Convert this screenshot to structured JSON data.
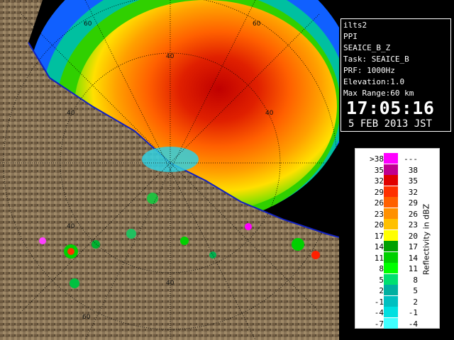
{
  "radar_display": {
    "range_ring_labels": [
      "60",
      "60",
      "40",
      "40",
      "40",
      "40",
      "40",
      "60"
    ]
  },
  "info": {
    "station": "ilts2",
    "scan_type": "PPI",
    "product": "SEAICE_B_Z",
    "task": "Task: SEAICE_B",
    "prf": "PRF: 1000Hz",
    "elevation": "Elevation:1.0",
    "max_range": "Max Range:60 km",
    "time": "17:05:16",
    "date": "5 FEB 2013 JST"
  },
  "legend": {
    "title": "Reflectivity in dBZ",
    "rows": [
      {
        "lo": ">38",
        "hi": "---",
        "color": "#ff00ff"
      },
      {
        "lo": "35",
        "hi": "38",
        "color": "#c00090"
      },
      {
        "lo": "32",
        "hi": "35",
        "color": "#e00000"
      },
      {
        "lo": "29",
        "hi": "32",
        "color": "#ff3000"
      },
      {
        "lo": "26",
        "hi": "29",
        "color": "#ff6000"
      },
      {
        "lo": "23",
        "hi": "26",
        "color": "#ff9000"
      },
      {
        "lo": "20",
        "hi": "23",
        "color": "#ffc000"
      },
      {
        "lo": "17",
        "hi": "20",
        "color": "#ffff00"
      },
      {
        "lo": "14",
        "hi": "17",
        "color": "#00a000"
      },
      {
        "lo": "11",
        "hi": "14",
        "color": "#00d000"
      },
      {
        "lo": "8",
        "hi": "11",
        "color": "#00ff00"
      },
      {
        "lo": "5",
        "hi": "8",
        "color": "#00e070"
      },
      {
        "lo": "2",
        "hi": "5",
        "color": "#00b0a0"
      },
      {
        "lo": "-1",
        "hi": "2",
        "color": "#00c0c0"
      },
      {
        "lo": "-4",
        "hi": "-1",
        "color": "#00e0e0"
      },
      {
        "lo": "-7",
        "hi": "-4",
        "color": "#40ffff"
      }
    ]
  }
}
